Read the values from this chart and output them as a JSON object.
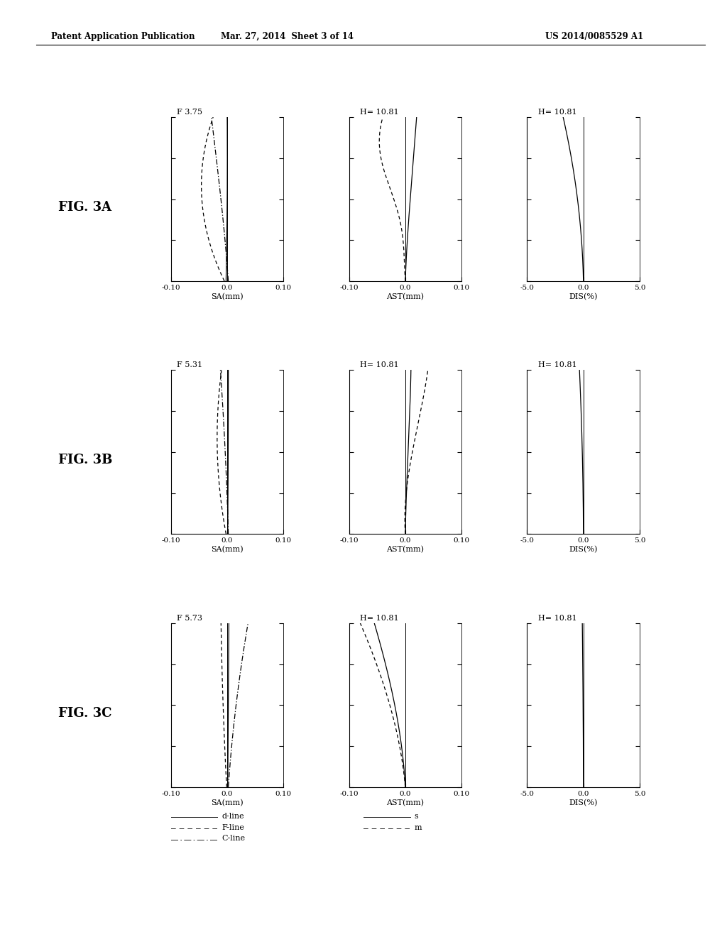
{
  "header_left": "Patent Application Publication",
  "header_mid": "Mar. 27, 2014  Sheet 3 of 14",
  "header_right": "US 2014/0085529 A1",
  "rows": [
    {
      "label": "FIG. 3A",
      "sa_title": "F 3.75",
      "ast_title": "H= 10.81",
      "dis_title": "H= 10.81"
    },
    {
      "label": "FIG. 3B",
      "sa_title": "F 5.31",
      "ast_title": "H= 10.81",
      "dis_title": "H= 10.81"
    },
    {
      "label": "FIG. 3C",
      "sa_title": "F 5.73",
      "ast_title": "H= 10.81",
      "dis_title": "H= 10.81"
    }
  ],
  "sa_xlim": [
    -0.1,
    0.1
  ],
  "ast_xlim": [
    -0.1,
    0.1
  ],
  "dis_xlim": [
    -5.0,
    5.0
  ],
  "ylim": [
    0,
    1
  ],
  "sa_xticks": [
    -0.1,
    0.0,
    0.1
  ],
  "ast_xticks": [
    -0.1,
    0.0,
    0.1
  ],
  "dis_xticks": [
    -5.0,
    0.0,
    5.0
  ],
  "yticks": [
    0.0,
    0.25,
    0.5,
    0.75,
    1.0
  ],
  "sa_xlabels": [
    "-0.10",
    "0.0",
    "0.10"
  ],
  "ast_xlabels": [
    "-0.10",
    "0.0",
    "0.10"
  ],
  "dis_xlabels": [
    "-5.0",
    "0.0",
    "5.0"
  ]
}
